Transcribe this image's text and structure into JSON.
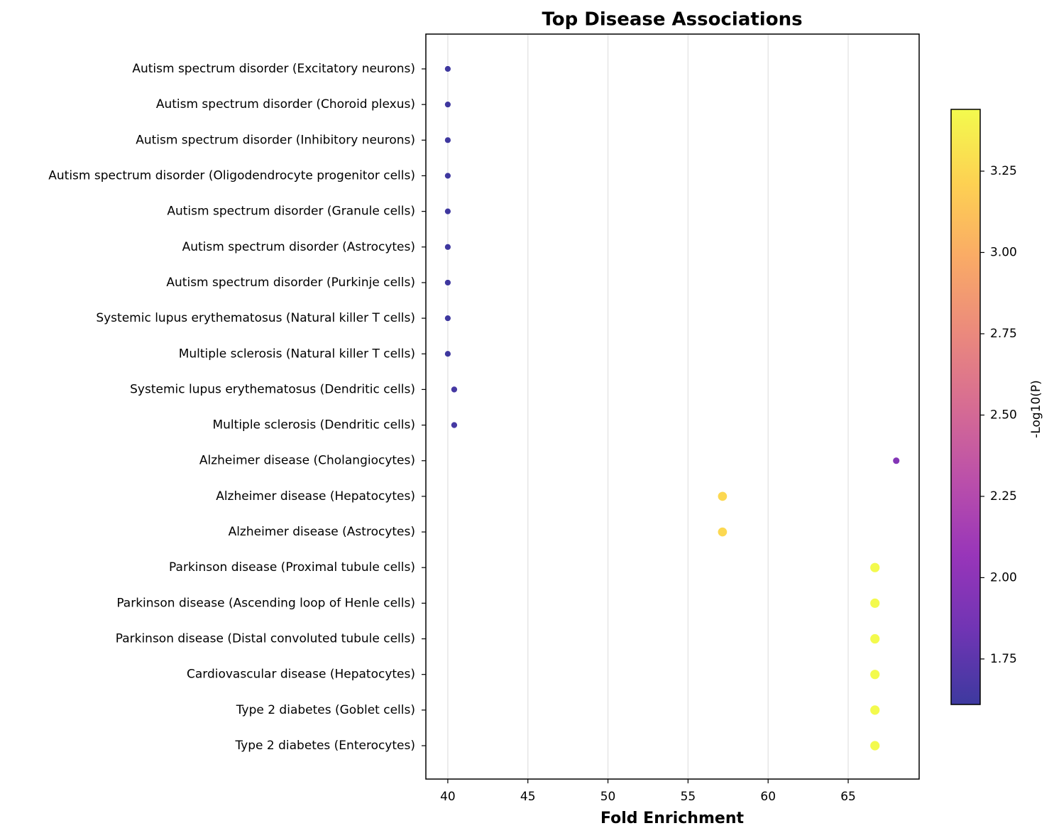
{
  "chart_data": {
    "type": "dot",
    "title": "Top Disease Associations",
    "x_label": "Fold Enrichment",
    "colorbar_label": "-Log10(P)",
    "colormap": "plasma",
    "categories": [
      "Autism spectrum disorder (Excitatory neurons)",
      "Autism spectrum disorder (Choroid plexus)",
      "Autism spectrum disorder (Inhibitory neurons)",
      "Autism spectrum disorder (Oligodendrocyte progenitor cells)",
      "Autism spectrum disorder (Granule cells)",
      "Autism spectrum disorder (Astrocytes)",
      "Autism spectrum disorder (Purkinje cells)",
      "Systemic lupus erythematosus (Natural killer T cells)",
      "Multiple sclerosis (Natural killer T cells)",
      "Systemic lupus erythematosus (Dendritic cells)",
      "Multiple sclerosis (Dendritic cells)",
      "Alzheimer disease (Cholangiocytes)",
      "Alzheimer disease (Hepatocytes)",
      "Alzheimer disease (Astrocytes)",
      "Parkinson disease (Proximal tubule cells)",
      "Parkinson disease (Ascending loop of Henle cells)",
      "Parkinson disease (Distal convoluted tubule cells)",
      "Cardiovascular disease (Hepatocytes)",
      "Type 2 diabetes (Goblet cells)",
      "Type 2 diabetes (Enterocytes)"
    ],
    "values": [
      40.0,
      40.0,
      40.0,
      40.0,
      40.0,
      40.0,
      40.0,
      40.0,
      40.0,
      40.4,
      40.4,
      68.0,
      57.15,
      57.15,
      66.67,
      66.67,
      66.67,
      66.67,
      66.67,
      66.67
    ],
    "color_values": [
      1.62,
      1.62,
      1.62,
      1.62,
      1.62,
      1.62,
      1.62,
      1.62,
      1.62,
      1.65,
      1.65,
      1.95,
      3.25,
      3.25,
      3.44,
      3.44,
      3.44,
      3.44,
      3.44,
      3.44
    ],
    "xlim": [
      38.63,
      69.43
    ],
    "xticks": [
      40,
      45,
      50,
      55,
      60,
      65
    ],
    "clim": [
      1.61,
      3.44
    ],
    "cticks": [
      1.75,
      {
        "value": 2,
        "label": "2.00"
      },
      2.25,
      {
        "value": 2.5,
        "label": "2.50"
      },
      2.75,
      {
        "value": 3,
        "label": "3.00"
      },
      3.25
    ],
    "grid": true
  }
}
